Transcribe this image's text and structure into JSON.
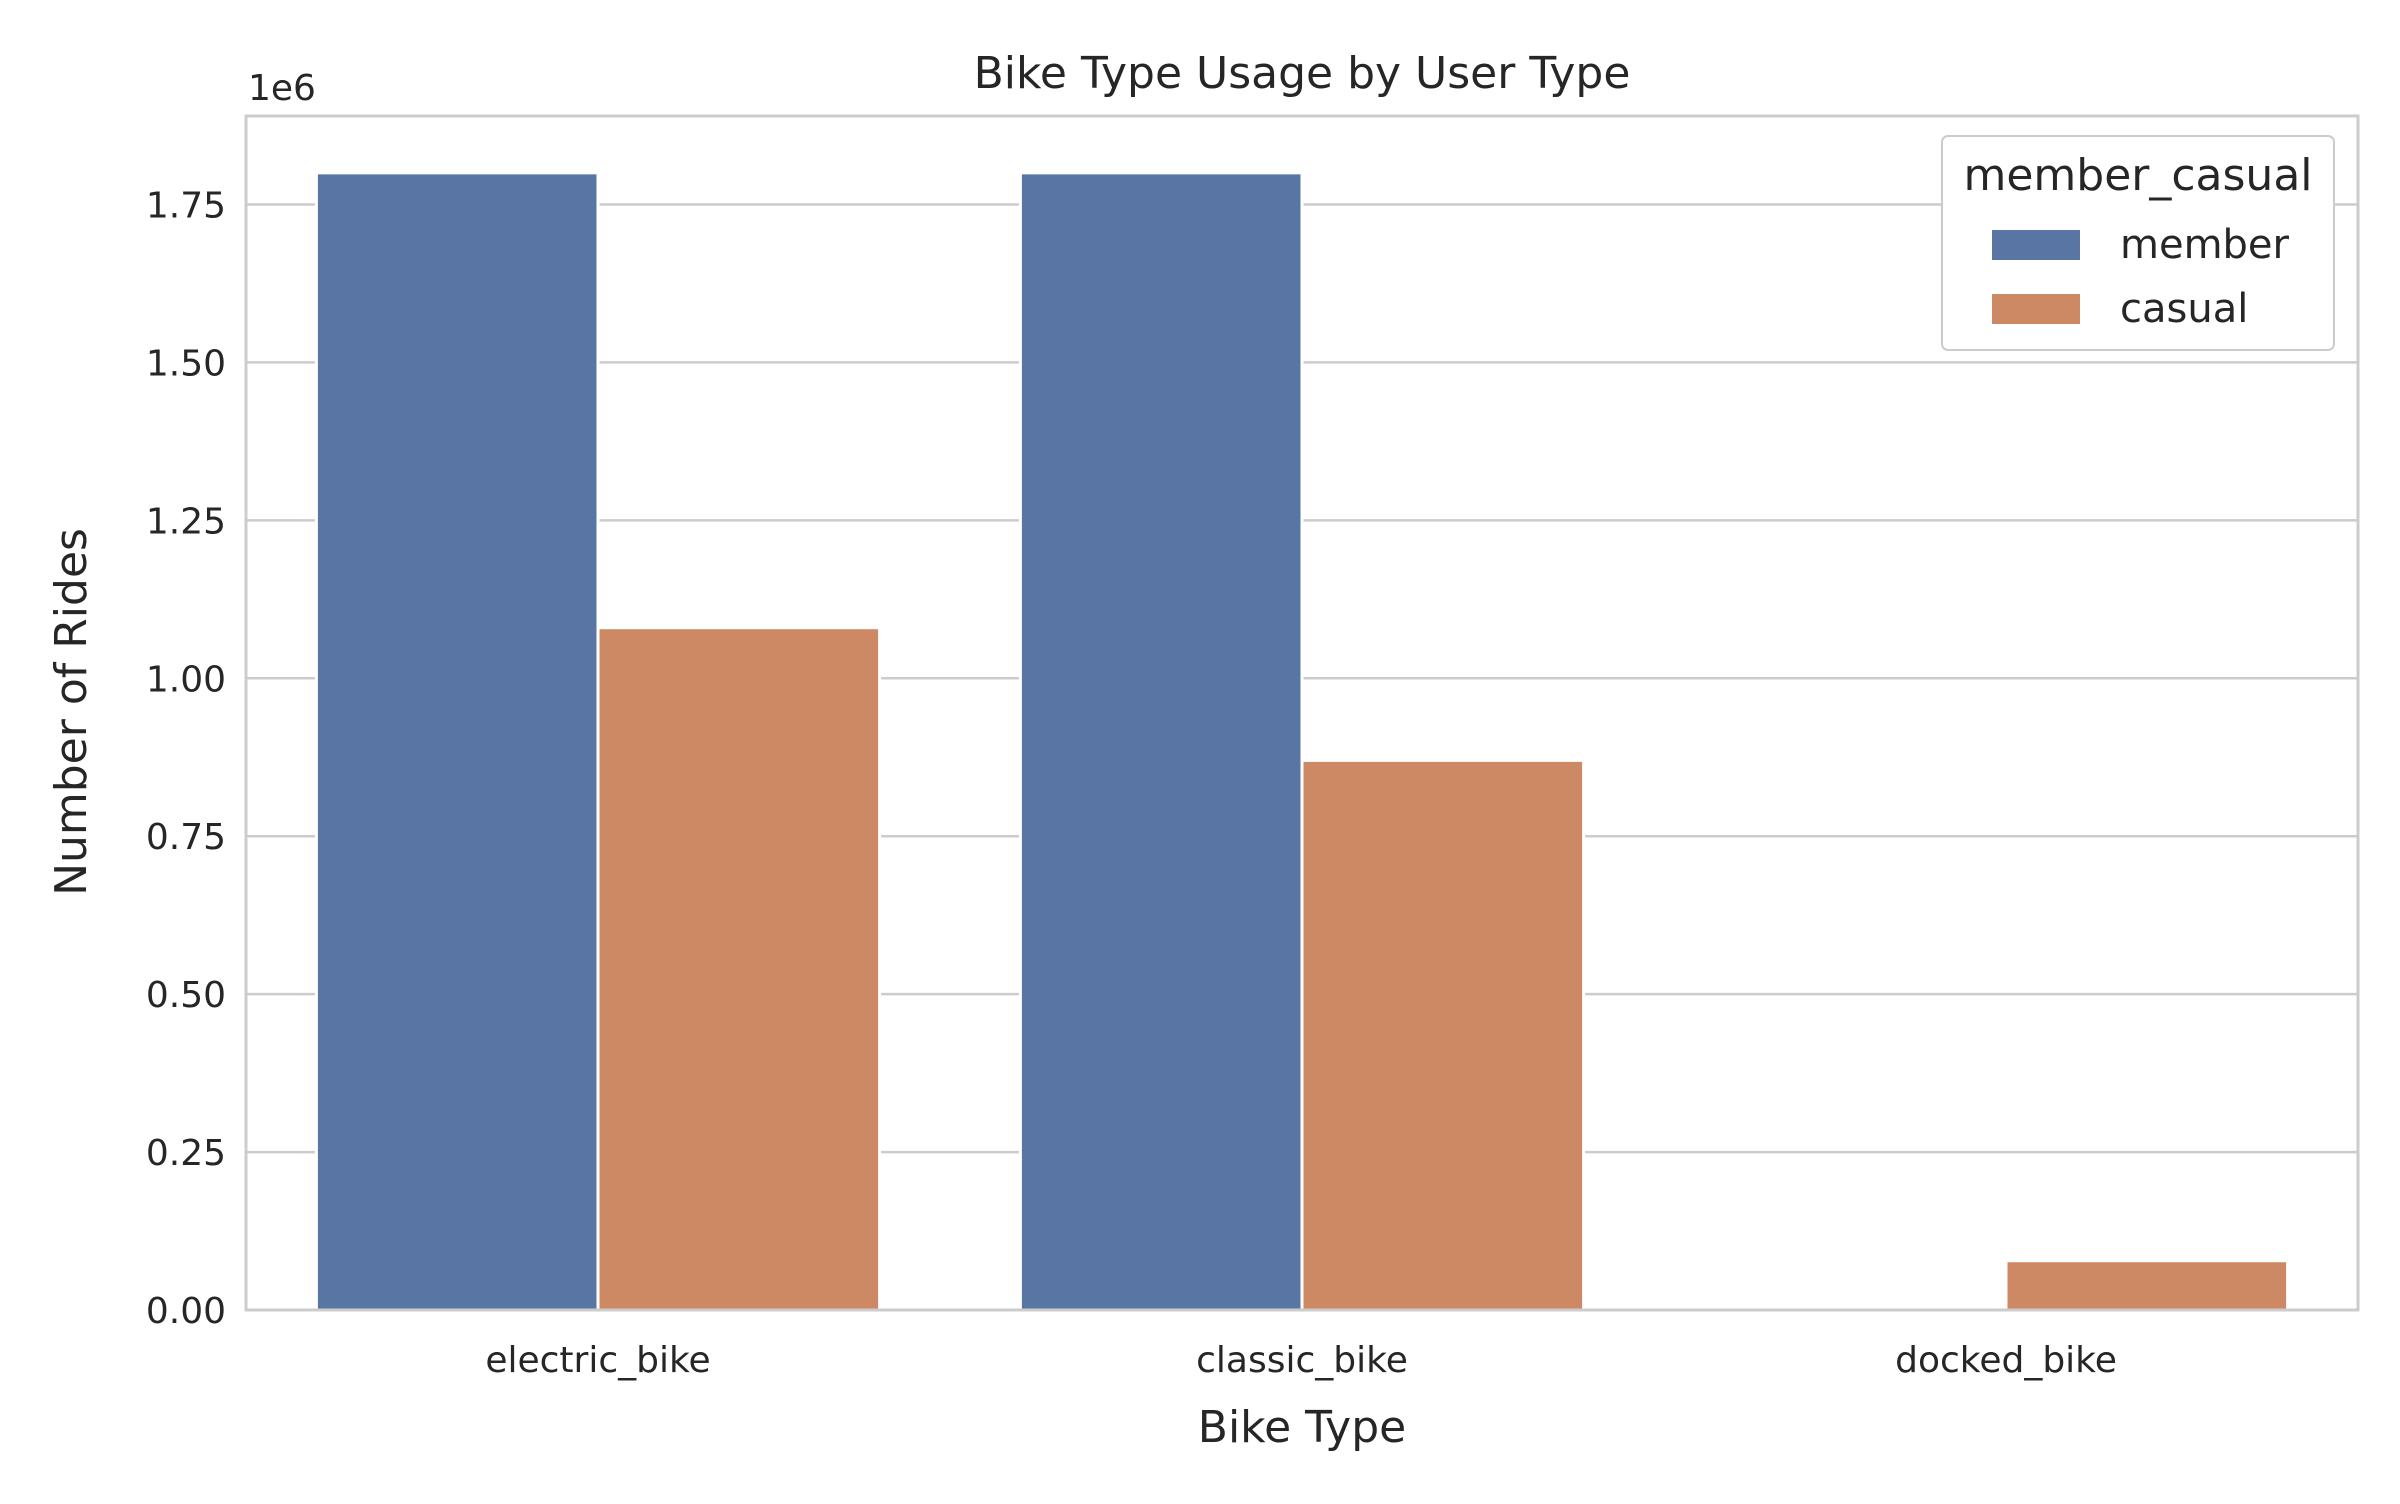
{
  "chart_data": {
    "type": "bar",
    "title": "Bike Type Usage by User Type",
    "xlabel": "Bike Type",
    "ylabel": "Number of Rides",
    "y_scale_label": "1e6",
    "categories": [
      "electric_bike",
      "classic_bike",
      "docked_bike"
    ],
    "series": [
      {
        "name": "member",
        "color": "#5975a4",
        "values": [
          1800000,
          1800000,
          0
        ]
      },
      {
        "name": "casual",
        "color": "#cc8963",
        "values": [
          1080000,
          870000,
          78000
        ]
      }
    ],
    "ylim": [
      0,
      1890000
    ],
    "yticks": [
      0,
      250000,
      500000,
      750000,
      1000000,
      1250000,
      1500000,
      1750000
    ],
    "ytick_labels": [
      "0.00",
      "0.25",
      "0.50",
      "0.75",
      "1.00",
      "1.25",
      "1.50",
      "1.75"
    ],
    "grid": true,
    "legend": {
      "title": "member_casual",
      "placement": "top-right"
    }
  }
}
